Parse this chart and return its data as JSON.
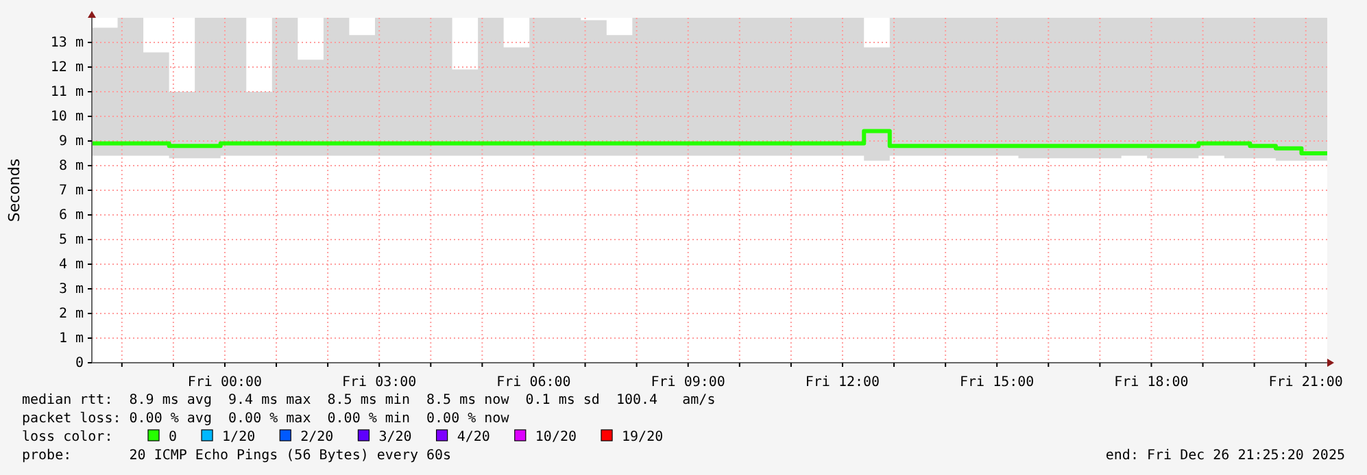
{
  "chart_data": {
    "type": "step",
    "ylabel": "Seconds",
    "legend_title": "loss color:",
    "legend": "bottom",
    "grid": true,
    "xlim": [
      "2025-12-25T21:25",
      "2025-12-26T21:25"
    ],
    "xticks": [
      {
        "value": "2025-12-25T22:00",
        "label": null
      },
      {
        "value": "2025-12-25T23:00",
        "label": null
      },
      {
        "value": "2025-12-26T00:00",
        "label": "Fri 00:00"
      },
      {
        "value": "2025-12-26T01:00",
        "label": null
      },
      {
        "value": "2025-12-26T02:00",
        "label": null
      },
      {
        "value": "2025-12-26T03:00",
        "label": "Fri 03:00"
      },
      {
        "value": "2025-12-26T04:00",
        "label": null
      },
      {
        "value": "2025-12-26T05:00",
        "label": null
      },
      {
        "value": "2025-12-26T06:00",
        "label": "Fri 06:00"
      },
      {
        "value": "2025-12-26T07:00",
        "label": null
      },
      {
        "value": "2025-12-26T08:00",
        "label": null
      },
      {
        "value": "2025-12-26T09:00",
        "label": "Fri 09:00"
      },
      {
        "value": "2025-12-26T10:00",
        "label": null
      },
      {
        "value": "2025-12-26T11:00",
        "label": null
      },
      {
        "value": "2025-12-26T12:00",
        "label": "Fri 12:00"
      },
      {
        "value": "2025-12-26T13:00",
        "label": null
      },
      {
        "value": "2025-12-26T14:00",
        "label": null
      },
      {
        "value": "2025-12-26T15:00",
        "label": "Fri 15:00"
      },
      {
        "value": "2025-12-26T16:00",
        "label": null
      },
      {
        "value": "2025-12-26T17:00",
        "label": null
      },
      {
        "value": "2025-12-26T18:00",
        "label": "Fri 18:00"
      },
      {
        "value": "2025-12-26T19:00",
        "label": null
      },
      {
        "value": "2025-12-26T20:00",
        "label": null
      },
      {
        "value": "2025-12-26T21:00",
        "label": "Fri 21:00"
      }
    ],
    "ylim": [
      0,
      14
    ],
    "yticks": [
      0,
      {
        "value": 1,
        "label": "1 m"
      },
      {
        "value": 2,
        "label": "2 m"
      },
      {
        "value": 3,
        "label": "3 m"
      },
      {
        "value": 4,
        "label": "4 m"
      },
      {
        "value": 5,
        "label": "5 m"
      },
      {
        "value": 6,
        "label": "6 m"
      },
      {
        "value": 7,
        "label": "7 m"
      },
      {
        "value": 8,
        "label": "8 m"
      },
      {
        "value": 9,
        "label": "9 m"
      },
      {
        "value": 10,
        "label": "10 m"
      },
      {
        "value": 11,
        "label": "11 m"
      },
      {
        "value": 12,
        "label": "12 m"
      },
      {
        "value": 13,
        "label": "13 m"
      }
    ],
    "x": [
      "2025-12-25T21:25",
      "2025-12-25T21:55",
      "2025-12-25T22:25",
      "2025-12-25T22:55",
      "2025-12-25T23:25",
      "2025-12-25T23:55",
      "2025-12-26T00:25",
      "2025-12-26T00:55",
      "2025-12-26T01:25",
      "2025-12-26T01:55",
      "2025-12-26T02:25",
      "2025-12-26T02:55",
      "2025-12-26T03:25",
      "2025-12-26T03:55",
      "2025-12-26T04:25",
      "2025-12-26T04:55",
      "2025-12-26T05:25",
      "2025-12-26T05:55",
      "2025-12-26T06:25",
      "2025-12-26T06:55",
      "2025-12-26T07:25",
      "2025-12-26T07:55",
      "2025-12-26T08:25",
      "2025-12-26T08:55",
      "2025-12-26T09:25",
      "2025-12-26T09:55",
      "2025-12-26T10:25",
      "2025-12-26T10:55",
      "2025-12-26T11:25",
      "2025-12-26T11:55",
      "2025-12-26T12:25",
      "2025-12-26T12:55",
      "2025-12-26T13:25",
      "2025-12-26T13:55",
      "2025-12-26T14:25",
      "2025-12-26T14:55",
      "2025-12-26T15:25",
      "2025-12-26T15:55",
      "2025-12-26T16:25",
      "2025-12-26T16:55",
      "2025-12-26T17:25",
      "2025-12-26T17:55",
      "2025-12-26T18:25",
      "2025-12-26T18:55",
      "2025-12-26T19:25",
      "2025-12-26T19:55",
      "2025-12-26T20:25",
      "2025-12-26T20:55",
      "2025-12-26T21:25"
    ],
    "series": [
      {
        "name": "0",
        "color": "#26ff00",
        "values": [
          8.9,
          8.9,
          8.9,
          8.8,
          8.8,
          8.9,
          8.9,
          8.9,
          8.9,
          8.9,
          8.9,
          8.9,
          8.9,
          8.9,
          8.9,
          8.9,
          8.9,
          8.9,
          8.9,
          8.9,
          8.9,
          8.9,
          8.9,
          8.9,
          8.9,
          8.9,
          8.9,
          8.9,
          8.9,
          8.9,
          9.4,
          8.8,
          8.8,
          8.8,
          8.8,
          8.8,
          8.8,
          8.8,
          8.8,
          8.8,
          8.8,
          8.8,
          8.8,
          8.9,
          8.9,
          8.8,
          8.7,
          8.5,
          8.5
        ],
        "lower": [
          8.4,
          8.4,
          8.4,
          8.3,
          8.3,
          8.4,
          8.4,
          8.4,
          8.4,
          8.4,
          8.4,
          8.4,
          8.4,
          8.4,
          8.4,
          8.4,
          8.4,
          8.4,
          8.4,
          8.4,
          8.4,
          8.4,
          8.4,
          8.4,
          8.4,
          8.4,
          8.4,
          8.4,
          8.4,
          8.4,
          8.2,
          8.4,
          8.4,
          8.4,
          8.4,
          8.4,
          8.3,
          8.3,
          8.3,
          8.3,
          8.4,
          8.3,
          8.3,
          8.4,
          8.3,
          8.3,
          8.2,
          8.2,
          8.2
        ],
        "upper": [
          13.6,
          14,
          12.6,
          11.0,
          14,
          14,
          11.0,
          14,
          12.3,
          14,
          13.3,
          14,
          14,
          14,
          11.9,
          14,
          12.8,
          14,
          14,
          13.9,
          13.3,
          14,
          14,
          14,
          14,
          14,
          14,
          14,
          14,
          14,
          12.8,
          14,
          14,
          14,
          14,
          14,
          14,
          14,
          14,
          14,
          14,
          14,
          14,
          14,
          14,
          14,
          14,
          14,
          14
        ]
      },
      {
        "name": "1/20",
        "color": "#00b8ff",
        "values": [
          null,
          null,
          null,
          null,
          null,
          null,
          null,
          null,
          null,
          null,
          null,
          null,
          null,
          null,
          null,
          null,
          null,
          null,
          null,
          null,
          null,
          null,
          null,
          null,
          null,
          null,
          null,
          null,
          null,
          null,
          null,
          null,
          null,
          null,
          null,
          null,
          null,
          null,
          null,
          null,
          null,
          null,
          null,
          null,
          null,
          null,
          null,
          null,
          null
        ]
      },
      {
        "name": "2/20",
        "color": "#0059ff",
        "values": [
          null,
          null,
          null,
          null,
          null,
          null,
          null,
          null,
          null,
          null,
          null,
          null,
          null,
          null,
          null,
          null,
          null,
          null,
          null,
          null,
          null,
          null,
          null,
          null,
          null,
          null,
          null,
          null,
          null,
          null,
          null,
          null,
          null,
          null,
          null,
          null,
          null,
          null,
          null,
          null,
          null,
          null,
          null,
          null,
          null,
          null,
          null,
          null,
          null
        ]
      },
      {
        "name": "3/20",
        "color": "#5e00ff",
        "values": [
          null,
          null,
          null,
          null,
          null,
          null,
          null,
          null,
          null,
          null,
          null,
          null,
          null,
          null,
          null,
          null,
          null,
          null,
          null,
          null,
          null,
          null,
          null,
          null,
          null,
          null,
          null,
          null,
          null,
          null,
          null,
          null,
          null,
          null,
          null,
          null,
          null,
          null,
          null,
          null,
          null,
          null,
          null,
          null,
          null,
          null,
          null,
          null,
          null
        ]
      },
      {
        "name": "4/20",
        "color": "#7e00ff",
        "values": [
          null,
          null,
          null,
          null,
          null,
          null,
          null,
          null,
          null,
          null,
          null,
          null,
          null,
          null,
          null,
          null,
          null,
          null,
          null,
          null,
          null,
          null,
          null,
          null,
          null,
          null,
          null,
          null,
          null,
          null,
          null,
          null,
          null,
          null,
          null,
          null,
          null,
          null,
          null,
          null,
          null,
          null,
          null,
          null,
          null,
          null,
          null,
          null,
          null
        ]
      },
      {
        "name": "10/20",
        "color": "#dd00ff",
        "values": [
          null,
          null,
          null,
          null,
          null,
          null,
          null,
          null,
          null,
          null,
          null,
          null,
          null,
          null,
          null,
          null,
          null,
          null,
          null,
          null,
          null,
          null,
          null,
          null,
          null,
          null,
          null,
          null,
          null,
          null,
          null,
          null,
          null,
          null,
          null,
          null,
          null,
          null,
          null,
          null,
          null,
          null,
          null,
          null,
          null,
          null,
          null,
          null,
          null
        ]
      },
      {
        "name": "19/20",
        "color": "#ff0000",
        "values": [
          null,
          null,
          null,
          null,
          null,
          null,
          null,
          null,
          null,
          null,
          null,
          null,
          null,
          null,
          null,
          null,
          null,
          null,
          null,
          null,
          null,
          null,
          null,
          null,
          null,
          null,
          null,
          null,
          null,
          null,
          null,
          null,
          null,
          null,
          null,
          null,
          null,
          null,
          null,
          null,
          null,
          null,
          null,
          null,
          null,
          null,
          null,
          null,
          null
        ]
      }
    ],
    "annotations": [
      "median rtt:  8.9 ms avg  9.4 ms max  8.5 ms min  8.5 ms now  0.1 ms sd  100.4   am/s",
      "packet loss: 0.00 % avg  0.00 % max  0.00 % min  0.00 % now",
      "probe:       20 ICMP Echo Pings (56 Bytes) every 60s",
      "end: Fri Dec 26 21:25:20 2025"
    ]
  }
}
